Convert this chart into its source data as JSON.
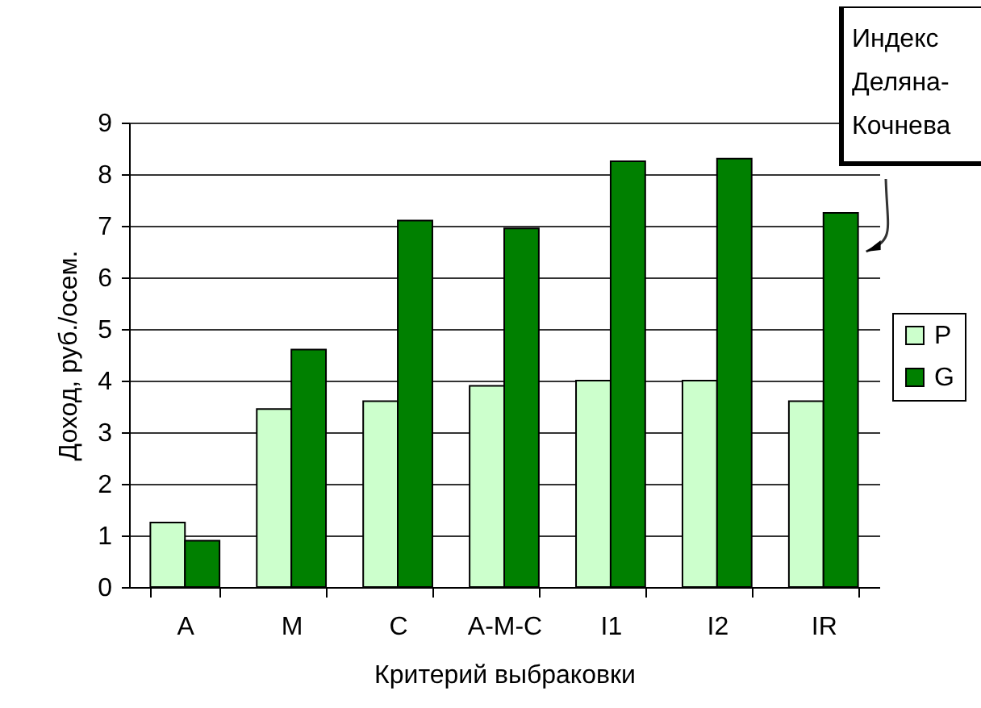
{
  "chart_data": {
    "type": "bar",
    "xlabel": "Критерий выбраковки",
    "ylabel": "Доход, руб./осем.",
    "categories": [
      "A",
      "M",
      "C",
      "A-M-C",
      "I1",
      "I2",
      "IR"
    ],
    "series": [
      {
        "name": "P",
        "color": "#ccffcc",
        "values": [
          1.25,
          3.45,
          3.6,
          3.9,
          4.0,
          4.0,
          3.6
        ]
      },
      {
        "name": "G",
        "color": "#008000",
        "values": [
          0.9,
          4.6,
          7.1,
          6.95,
          8.25,
          8.3,
          7.25
        ]
      }
    ],
    "ylim": [
      0,
      9
    ],
    "yticks": [
      0,
      1,
      2,
      3,
      4,
      5,
      6,
      7,
      8,
      9
    ],
    "grid": "y",
    "legend": "right",
    "annotations": [
      "Индекс Деляна-Кочнева"
    ]
  }
}
